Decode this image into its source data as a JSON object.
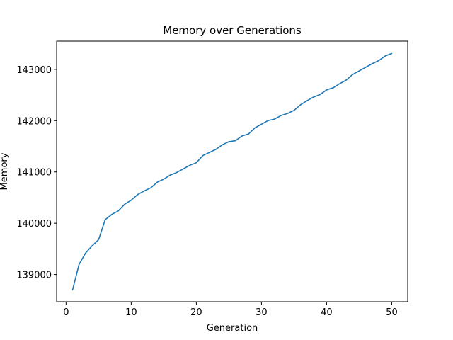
{
  "chart_data": {
    "type": "line",
    "title": "Memory over Generations",
    "xlabel": "Generation",
    "ylabel": "Memory",
    "xlim": [
      -1.45,
      52.45
    ],
    "ylim": [
      138470,
      143550
    ],
    "xticks": [
      0,
      10,
      20,
      30,
      40,
      50
    ],
    "yticks": [
      139000,
      140000,
      141000,
      142000,
      143000
    ],
    "grid": false,
    "line_color": "#1f77b4",
    "series": [
      {
        "x": [
          1,
          2,
          3,
          4,
          5,
          6,
          7,
          8,
          9,
          10,
          11,
          12,
          13,
          14,
          15,
          16,
          17,
          18,
          19,
          20,
          21,
          22,
          23,
          24,
          25,
          26,
          27,
          28,
          29,
          30,
          31,
          32,
          33,
          34,
          35,
          36,
          37,
          38,
          39,
          40,
          41,
          42,
          43,
          44,
          45,
          46,
          47,
          48,
          49,
          50
        ],
        "values": [
          138700,
          139200,
          139420,
          139560,
          139680,
          140070,
          140170,
          140240,
          140370,
          140450,
          140560,
          140630,
          140690,
          140800,
          140860,
          140940,
          140990,
          141060,
          141130,
          141180,
          141320,
          141380,
          141440,
          141530,
          141590,
          141610,
          141700,
          141740,
          141860,
          141930,
          142000,
          142030,
          142100,
          142140,
          142200,
          142310,
          142390,
          142460,
          142510,
          142600,
          142640,
          142720,
          142790,
          142900,
          142970,
          143040,
          143110,
          143170,
          143260,
          143310
        ]
      }
    ]
  }
}
